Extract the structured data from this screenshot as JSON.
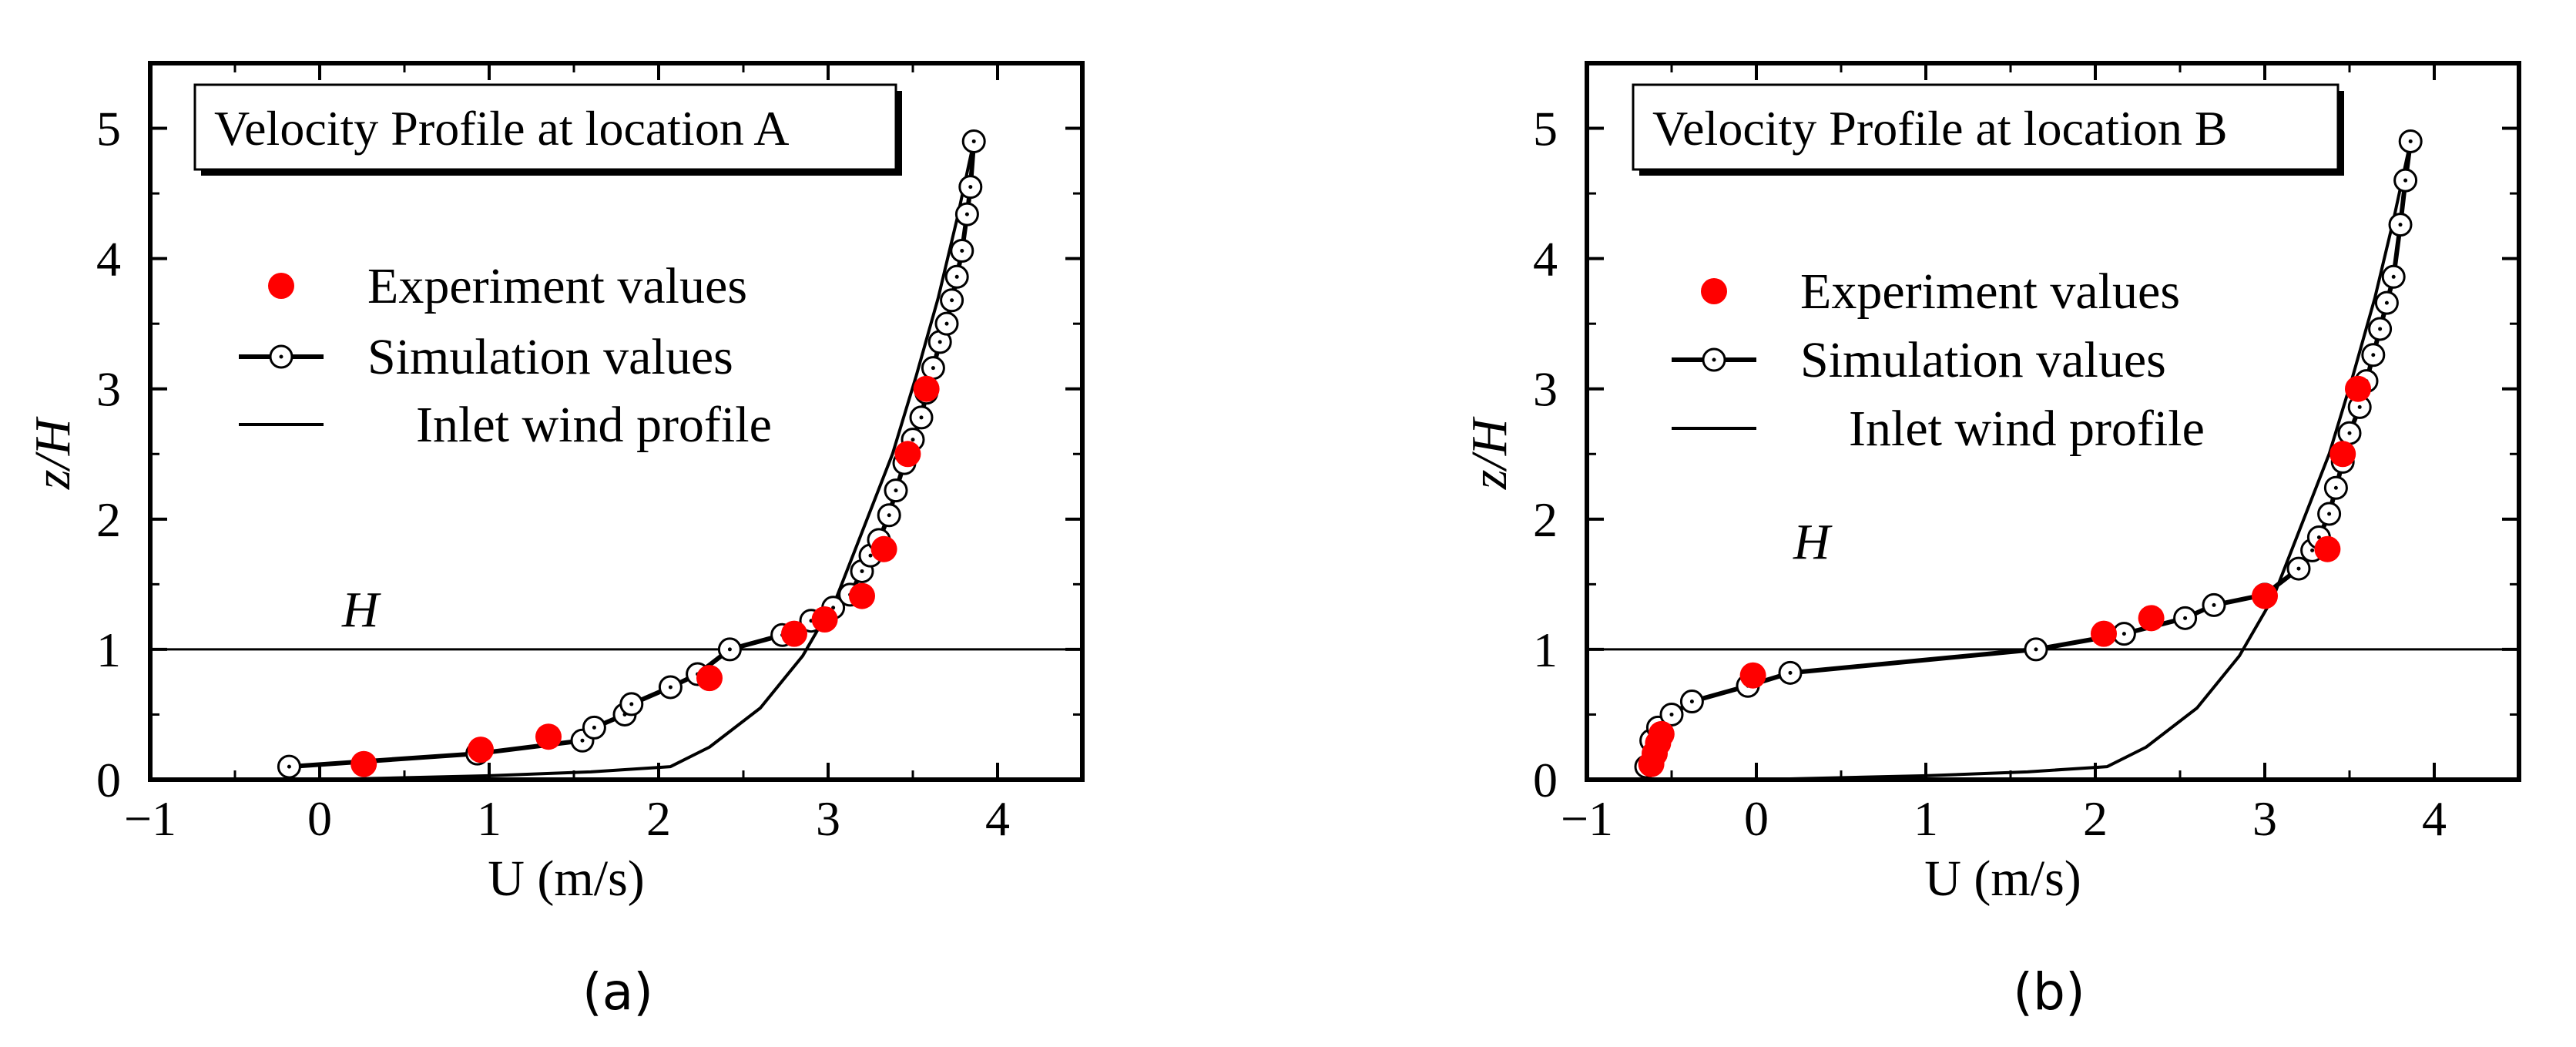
{
  "chart_data": [
    {
      "type": "line",
      "panel": "(a)",
      "title": "Velocity Profile at location A",
      "xlabel": "U (m/s)",
      "ylabel": "z/H",
      "xlim": [
        -1,
        4.5
      ],
      "ylim": [
        0,
        5.5
      ],
      "xticks": [
        -1,
        0,
        1,
        2,
        3,
        4
      ],
      "yticks": [
        0,
        1,
        2,
        3,
        4,
        5
      ],
      "reference_line": {
        "y": 1,
        "label": "H"
      },
      "legend": [
        "Experiment values",
        "Simulation values",
        "Inlet wind profile"
      ],
      "series": [
        {
          "name": "Experiment values",
          "color": "#ff0000",
          "x": [
            0.26,
            0.95,
            1.35,
            2.3,
            2.8,
            2.98,
            3.2,
            3.33,
            3.47,
            3.58
          ],
          "y": [
            0.12,
            0.23,
            0.33,
            0.78,
            1.12,
            1.23,
            1.41,
            1.77,
            2.5,
            3.0
          ]
        },
        {
          "name": "Simulation values",
          "color": "#000000",
          "x": [
            -0.18,
            0.93,
            1.55,
            1.62,
            1.8,
            1.84,
            2.07,
            2.23,
            2.42,
            2.73,
            2.9,
            3.03,
            3.13,
            3.2,
            3.25,
            3.3,
            3.36,
            3.4,
            3.45,
            3.5,
            3.55,
            3.58,
            3.62,
            3.66,
            3.7,
            3.73,
            3.76,
            3.79,
            3.82,
            3.84,
            3.86
          ],
          "y": [
            0.1,
            0.2,
            0.3,
            0.4,
            0.5,
            0.58,
            0.71,
            0.81,
            1.0,
            1.11,
            1.22,
            1.32,
            1.42,
            1.6,
            1.72,
            1.84,
            2.03,
            2.22,
            2.43,
            2.61,
            2.78,
            2.97,
            3.16,
            3.36,
            3.5,
            3.68,
            3.86,
            4.06,
            4.34,
            4.55,
            4.9
          ]
        },
        {
          "name": "Inlet wind profile",
          "color": "#000000",
          "x": [
            0,
            1.0,
            1.6,
            2.07,
            2.3,
            2.6,
            2.85,
            3.05,
            3.2,
            3.38,
            3.52,
            3.65,
            3.76,
            3.86
          ],
          "y": [
            0.0,
            0.03,
            0.06,
            0.1,
            0.25,
            0.55,
            0.95,
            1.4,
            1.9,
            2.5,
            3.1,
            3.7,
            4.3,
            4.9
          ]
        }
      ]
    },
    {
      "type": "line",
      "panel": "(b)",
      "title": "Velocity Profile at location B",
      "xlabel": "U (m/s)",
      "ylabel": "z/H",
      "xlim": [
        -1,
        4.5
      ],
      "ylim": [
        0,
        5.5
      ],
      "xticks": [
        -1,
        0,
        1,
        2,
        3,
        4
      ],
      "yticks": [
        0,
        1,
        2,
        3,
        4,
        5
      ],
      "reference_line": {
        "y": 1,
        "label": "H"
      },
      "legend": [
        "Experiment values",
        "Simulation values",
        "Inlet wind profile"
      ],
      "series": [
        {
          "name": "Experiment values",
          "color": "#ff0000",
          "x": [
            -0.62,
            -0.6,
            -0.58,
            -0.56,
            -0.02,
            2.05,
            2.33,
            3.0,
            3.37,
            3.46,
            3.55
          ],
          "y": [
            0.12,
            0.2,
            0.28,
            0.35,
            0.8,
            1.12,
            1.24,
            1.41,
            1.77,
            2.5,
            3.0
          ]
        },
        {
          "name": "Simulation values",
          "color": "#000000",
          "x": [
            -0.65,
            -0.62,
            -0.58,
            -0.5,
            -0.38,
            -0.05,
            0.2,
            1.65,
            2.17,
            2.53,
            2.7,
            3.0,
            3.2,
            3.28,
            3.32,
            3.38,
            3.42,
            3.46,
            3.5,
            3.56,
            3.6,
            3.64,
            3.68,
            3.72,
            3.76,
            3.8,
            3.83,
            3.86
          ],
          "y": [
            0.1,
            0.3,
            0.4,
            0.5,
            0.6,
            0.72,
            0.82,
            1.0,
            1.12,
            1.24,
            1.34,
            1.42,
            1.62,
            1.76,
            1.86,
            2.04,
            2.24,
            2.44,
            2.66,
            2.86,
            3.06,
            3.26,
            3.46,
            3.66,
            3.86,
            4.26,
            4.6,
            4.9
          ]
        },
        {
          "name": "Inlet wind profile",
          "color": "#000000",
          "x": [
            0,
            1.0,
            1.6,
            2.07,
            2.3,
            2.6,
            2.85,
            3.05,
            3.2,
            3.38,
            3.52,
            3.65,
            3.76,
            3.86
          ],
          "y": [
            0.0,
            0.03,
            0.06,
            0.1,
            0.25,
            0.55,
            0.95,
            1.4,
            1.9,
            2.5,
            3.1,
            3.7,
            4.3,
            4.9
          ]
        }
      ]
    }
  ]
}
